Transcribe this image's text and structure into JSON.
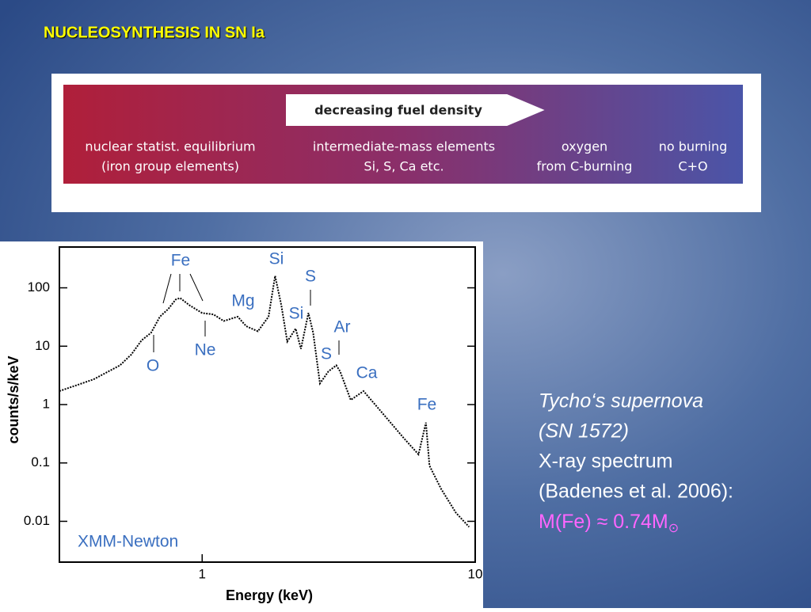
{
  "title": "NUCLEOSYNTHESIS IN SN Ia",
  "banner": {
    "arrow": "decreasing fuel density",
    "zones": [
      [
        "nuclear statist. equilibrium",
        "(iron group elements)"
      ],
      [
        "intermediate-mass elements",
        "Si, S, Ca etc."
      ],
      [
        "oxygen",
        "from C-burning"
      ],
      [
        "no burning",
        "C+O"
      ]
    ]
  },
  "chart_data": {
    "type": "line",
    "x": [
      0.3,
      0.4,
      0.5,
      0.55,
      0.6,
      0.65,
      0.7,
      0.75,
      0.8,
      0.83,
      0.9,
      1.0,
      1.1,
      1.2,
      1.35,
      1.45,
      1.6,
      1.75,
      1.85,
      1.95,
      2.05,
      2.2,
      2.3,
      2.45,
      2.55,
      2.7,
      2.9,
      3.1,
      3.2,
      3.5,
      3.9,
      4.5,
      5.5,
      6.2,
      6.6,
      6.8,
      7.5,
      8.5,
      9.5
    ],
    "series": [
      {
        "color": "#000000",
        "values": [
          1.7,
          2.7,
          4.7,
          7.2,
          12.6,
          17,
          32,
          43,
          63,
          67,
          50,
          37,
          35,
          27,
          32,
          22,
          18,
          32,
          160,
          50,
          12,
          20,
          9,
          37,
          17,
          2.3,
          3.7,
          4.7,
          3.7,
          1.2,
          1.7,
          0.78,
          0.26,
          0.14,
          0.49,
          0.09,
          0.036,
          0.014,
          0.008
        ]
      }
    ],
    "xlim": [
      0.3,
      10
    ],
    "ylim": [
      0.002,
      500
    ],
    "xticks": [
      1,
      10
    ],
    "yticks": [
      0.01,
      0.1,
      1,
      10,
      100
    ],
    "xscale": "log",
    "yscale": "log",
    "xlabel": "Energy (keV)",
    "ylabel": "counts/s/keV",
    "annotations": [
      "Fe",
      "O",
      "Ne",
      "Mg",
      "Si",
      "Si",
      "S",
      "S",
      "Ar",
      "Ca",
      "Fe"
    ],
    "instrument": "XMM-Newton"
  },
  "caption": {
    "lines": [
      "Tycho‘s supernova",
      "(SN 1572)",
      "X-ray spectrum",
      "(Badenes et al. 2006):"
    ],
    "highlight": "M(Fe) ≈ 0.74M",
    "symbol": "⊙"
  }
}
